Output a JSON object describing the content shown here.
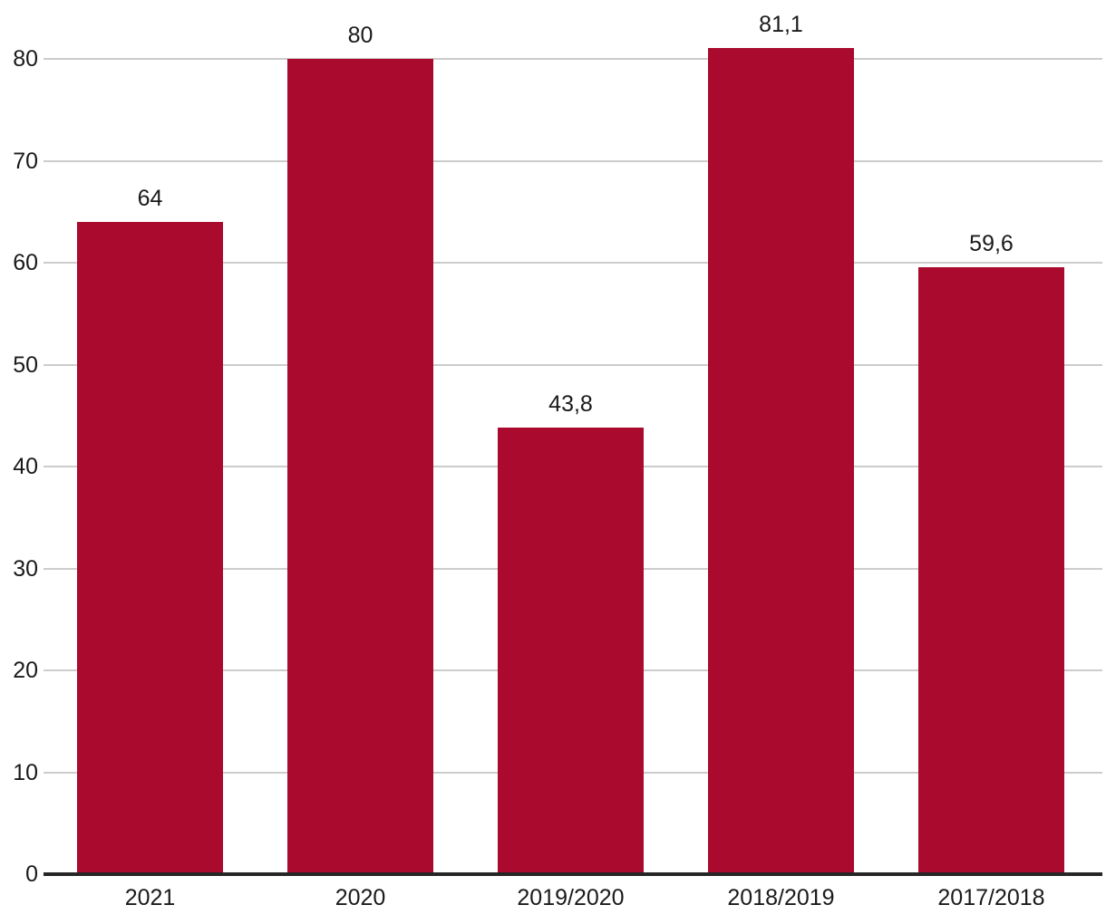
{
  "chart_data": {
    "type": "bar",
    "title": "",
    "xlabel": "",
    "ylabel": "",
    "categories": [
      "2021",
      "2020",
      "2019/2020",
      "2018/2019",
      "2017/2018"
    ],
    "values": [
      64,
      80,
      43.8,
      81.1,
      59.6
    ],
    "value_labels": [
      "64",
      "80",
      "43,8",
      "81,1",
      "59,6"
    ],
    "decimal_separator": ",",
    "ylim": [
      0,
      80
    ],
    "yticks": [
      0,
      10,
      20,
      30,
      40,
      50,
      60,
      70,
      80
    ],
    "ytick_labels": [
      "0",
      "10",
      "20",
      "30",
      "40",
      "50",
      "60",
      "70",
      "80"
    ],
    "grid": "horizontal",
    "legend": "none"
  },
  "colors": {
    "bar": "#A90A2E",
    "gridline": "#CCCCCC",
    "axis_line": "#262626",
    "text": "#1A1A1A",
    "background": "#FFFFFF"
  }
}
